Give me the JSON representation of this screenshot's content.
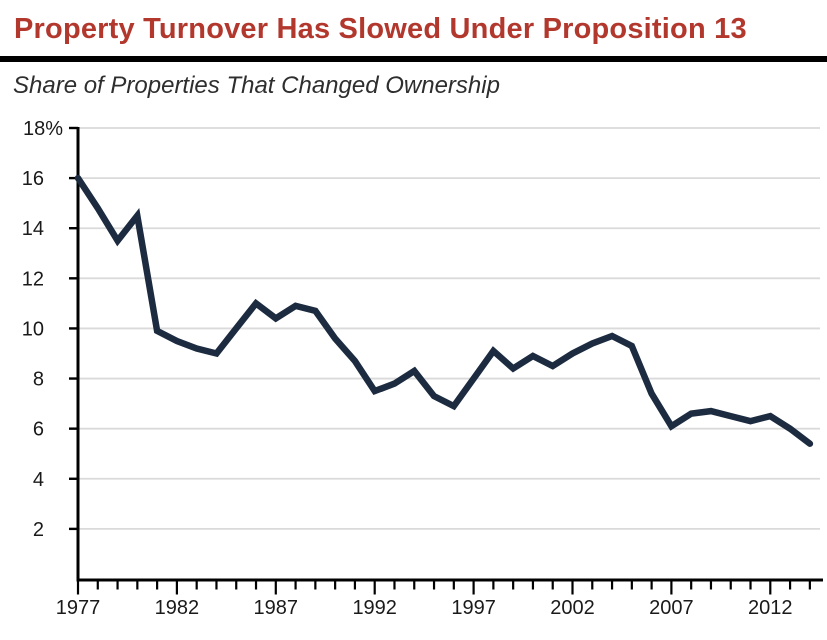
{
  "header": {
    "title": "Property Turnover Has Slowed Under Proposition 13",
    "subtitle": "Share of Properties That Changed Ownership"
  },
  "chart_data": {
    "type": "line",
    "title": "Property Turnover Has Slowed Under Proposition 13",
    "subtitle": "Share of Properties That Changed Ownership",
    "series_label": "Share of properties that changed ownership (%)",
    "x": [
      1977,
      1978,
      1979,
      1980,
      1981,
      1982,
      1983,
      1984,
      1985,
      1986,
      1987,
      1988,
      1989,
      1990,
      1991,
      1992,
      1993,
      1994,
      1995,
      1996,
      1997,
      1998,
      1999,
      2000,
      2001,
      2002,
      2003,
      2004,
      2005,
      2006,
      2007,
      2008,
      2009,
      2010,
      2011,
      2012,
      2013,
      2014
    ],
    "values": [
      16.0,
      14.8,
      13.5,
      14.5,
      9.9,
      9.5,
      9.2,
      9.0,
      10.0,
      11.0,
      10.4,
      10.9,
      10.7,
      9.6,
      8.7,
      7.5,
      7.8,
      8.3,
      7.3,
      6.9,
      8.0,
      9.1,
      8.4,
      8.9,
      8.5,
      9.0,
      9.4,
      9.7,
      9.3,
      7.4,
      6.1,
      6.6,
      6.7,
      6.5,
      6.3,
      6.5,
      6.0,
      5.4
    ],
    "ylim": [
      0,
      18
    ],
    "yticks": [
      2,
      4,
      6,
      8,
      10,
      12,
      14,
      16,
      18
    ],
    "ytick_top_label": "18%",
    "xtick_labels": [
      1977,
      1982,
      1987,
      1992,
      1997,
      2002,
      2007,
      2012
    ],
    "grid": "horizontal",
    "legend": "none",
    "colors": {
      "line": "#1c2b40",
      "title": "#b2382e",
      "grid": "#dadada",
      "axis": "#000000",
      "text": "#1a1a1a"
    }
  }
}
